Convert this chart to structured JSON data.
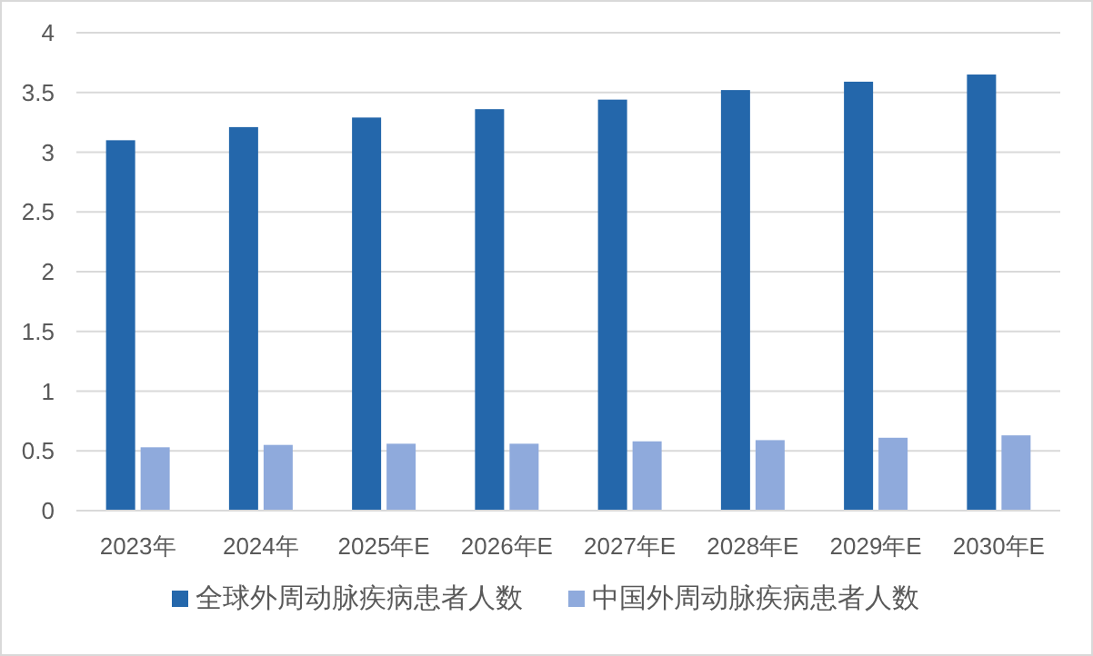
{
  "chart_data": {
    "type": "bar",
    "categories": [
      "2023年",
      "2024年",
      "2025年E",
      "2026年E",
      "2027年E",
      "2028年E",
      "2029年E",
      "2030年E"
    ],
    "series": [
      {
        "name": "全球外周动脉疾病患者人数",
        "color": "#2467ab",
        "values": [
          3.1,
          3.21,
          3.29,
          3.36,
          3.44,
          3.52,
          3.59,
          3.65
        ]
      },
      {
        "name": "中国外周动脉疾病患者人数",
        "color": "#8faadc",
        "values": [
          0.53,
          0.55,
          0.56,
          0.56,
          0.58,
          0.59,
          0.61,
          0.63
        ]
      }
    ],
    "ylim": [
      0,
      4
    ],
    "yticks": [
      0,
      0.5,
      1,
      1.5,
      2,
      2.5,
      3,
      3.5,
      4
    ],
    "grid": "y",
    "legend": "bottom"
  }
}
